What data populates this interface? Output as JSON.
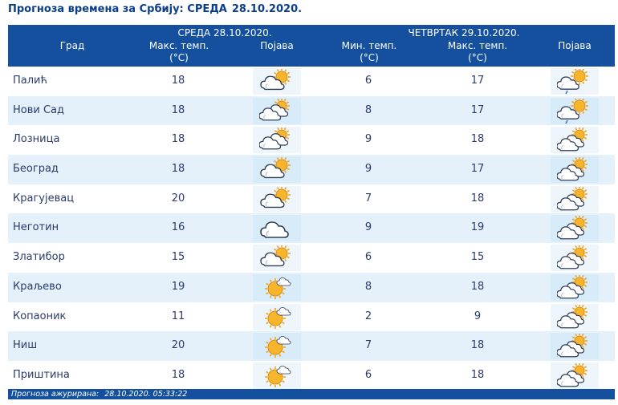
{
  "title": "Прогноза времена за Србију: СРЕДА",
  "title_date": "28.10.2020.",
  "header": {
    "city": "Град",
    "day1": "СРЕДА   28.10.2020.",
    "day2": "ЧЕТВРТАК  29.10.2020.",
    "max_temp_1": "Макс. темп.",
    "max_temp_1_unit": "(°C)",
    "phenom_1": "Појава",
    "min_temp_2": "Мин. темп.",
    "min_temp_2_unit": "(°C)",
    "max_temp_2": "Макс. темп.",
    "max_temp_2_unit": "(°C)",
    "phenom_2": "Појава"
  },
  "rows": [
    {
      "city": "Палић",
      "max1": "18",
      "icon1": "partly-cloudy-icon",
      "min2": "6",
      "max2": "17",
      "icon2": "partly-cloudy-drizzle-icon"
    },
    {
      "city": "Нови Сад",
      "max1": "18",
      "icon1": "cloudy-icon",
      "min2": "8",
      "max2": "17",
      "icon2": "partly-cloudy-drizzle-icon"
    },
    {
      "city": "Лозница",
      "max1": "18",
      "icon1": "cloudy-icon",
      "min2": "9",
      "max2": "18",
      "icon2": "cloudy-sun-icon"
    },
    {
      "city": "Београд",
      "max1": "18",
      "icon1": "partly-cloudy-icon",
      "min2": "9",
      "max2": "17",
      "icon2": "cloudy-sun-icon"
    },
    {
      "city": "Крагујевац",
      "max1": "20",
      "icon1": "partly-cloudy-icon",
      "min2": "7",
      "max2": "18",
      "icon2": "cloudy-sun-icon"
    },
    {
      "city": "Неготин",
      "max1": "16",
      "icon1": "overcast-icon",
      "min2": "9",
      "max2": "19",
      "icon2": "cloudy-sun-icon"
    },
    {
      "city": "Златибор",
      "max1": "15",
      "icon1": "partly-cloudy-icon",
      "min2": "6",
      "max2": "15",
      "icon2": "cloudy-sun-icon"
    },
    {
      "city": "Краљево",
      "max1": "19",
      "icon1": "mostly-sunny-icon",
      "min2": "8",
      "max2": "18",
      "icon2": "cloudy-sun-icon"
    },
    {
      "city": "Копаоник",
      "max1": "11",
      "icon1": "mostly-sunny-icon",
      "min2": "2",
      "max2": "9",
      "icon2": "cloudy-sun-icon"
    },
    {
      "city": "Ниш",
      "max1": "20",
      "icon1": "mostly-sunny-icon",
      "min2": "7",
      "max2": "18",
      "icon2": "cloudy-sun-icon"
    },
    {
      "city": "Приштина",
      "max1": "18",
      "icon1": "mostly-sunny-icon",
      "min2": "6",
      "max2": "18",
      "icon2": "cloudy-sun-icon"
    }
  ],
  "footer": {
    "label": "Прогноза ажурирана:",
    "timestamp": "28.10.2020. 05:33:22"
  },
  "colors": {
    "header_bg": "#14509e",
    "row_alt_bg": "#e4f1fb",
    "text": "#2a3b6b",
    "title": "#0b3e8a"
  }
}
